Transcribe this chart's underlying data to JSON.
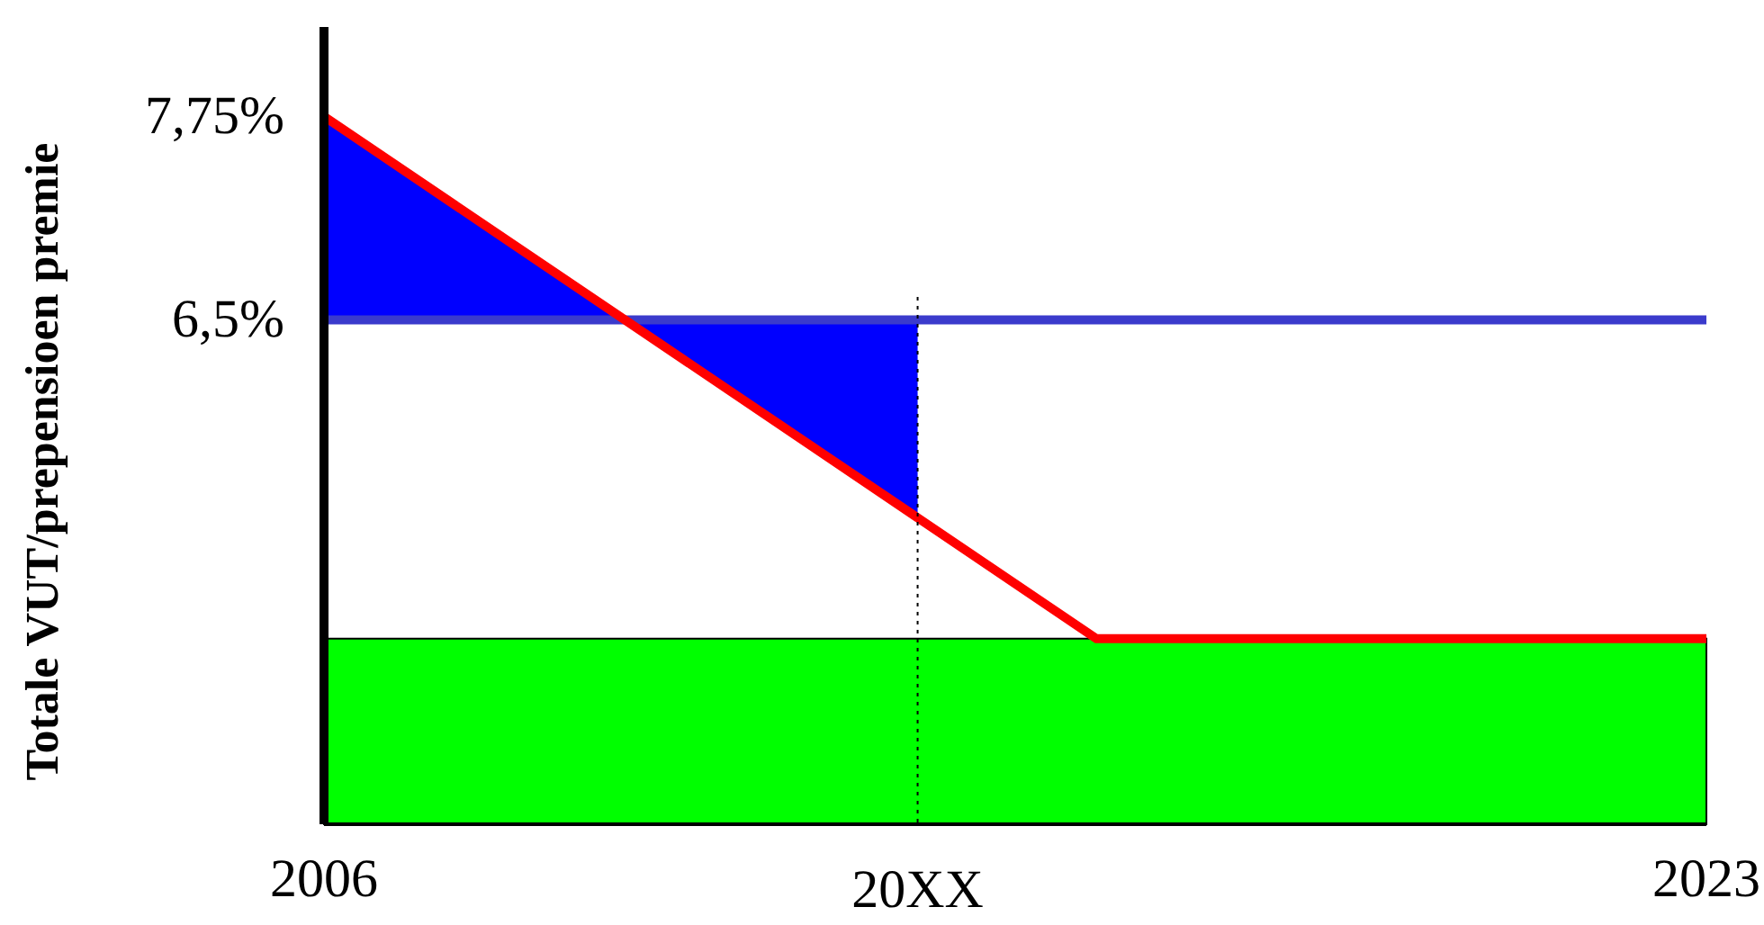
{
  "chart_data": {
    "type": "line",
    "ylabel": "Totale VUT/prepensioen premie",
    "xlim": [
      2006,
      2023
    ],
    "ylim": [
      3.4,
      8.3
    ],
    "xticks": [
      2006,
      2023
    ],
    "yticks": [
      {
        "value": 7.75,
        "label": "7,75%"
      },
      {
        "value": 6.5,
        "label": "6,5%"
      }
    ],
    "grid": false,
    "ref_lines": [
      {
        "axis": "x",
        "value": 2013.3,
        "label": "20XX",
        "color": "#000000",
        "line_style": "dotted"
      }
    ],
    "series": [
      {
        "type": "area",
        "color": "#00ff00",
        "x": [
          2006,
          2023
        ],
        "values": [
          4.54,
          4.54
        ]
      },
      {
        "color": "#3b3bcc",
        "x": [
          2006,
          2009.7,
          2013.3,
          2023
        ],
        "values": [
          6.5,
          6.5,
          6.5,
          6.5
        ],
        "lower": [
          6.5,
          6.5,
          5.28,
          null
        ],
        "upper": [
          7.75,
          6.5,
          6.5,
          null
        ]
      },
      {
        "color": "#ff0000",
        "x": [
          2006,
          2015.5,
          2023
        ],
        "values": [
          7.75,
          4.54,
          4.54
        ]
      }
    ]
  }
}
